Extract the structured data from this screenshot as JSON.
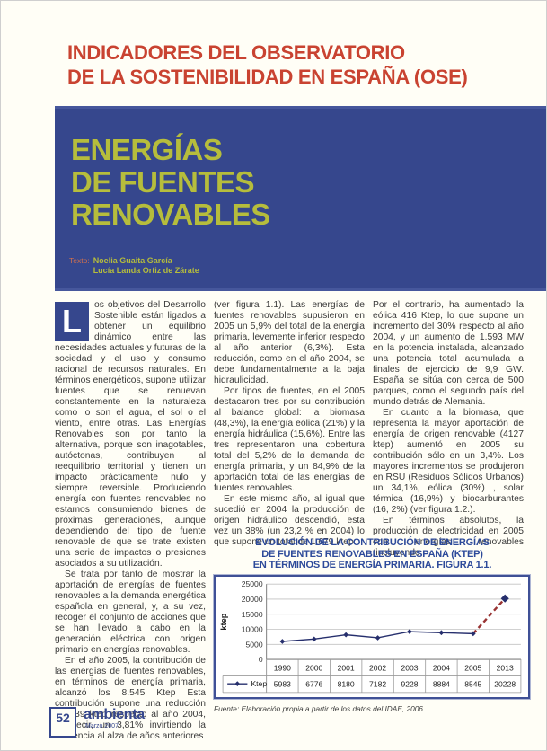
{
  "header": {
    "line1": "INDICADORES DEL OBSERVATORIO",
    "line2": "DE LA SOSTENIBILIDAD EN ESPAÑA (OSE)"
  },
  "hero": {
    "title_lines": [
      "ENERGÍAS",
      "DE FUENTES",
      "RENOVABLES"
    ],
    "credits_label": "Texto:",
    "credits_names": [
      "Noelia Guaita García",
      "Lucía Landa Ortiz de Zárate"
    ]
  },
  "body": {
    "dropcap": "L",
    "col1_p1": "os objetivos del Desarrollo Sostenible están ligados a obtener un equilibrio dinámico entre las necesidades actuales y futuras de la sociedad y el uso y consumo racional de recursos naturales. En términos energéticos, supone utilizar fuentes que se renuevan constantemente en la naturaleza como lo son el agua, el sol o el viento, entre otras. Las Energías Renovables son por tanto la alternativa, porque son inagotables, autóctonas, contribuyen al reequilibrio territorial y tienen un impacto prácticamente nulo y siempre reversible. Produciendo energía con fuentes renovables no estamos consumiendo bienes de próximas generaciones, aunque dependiendo del tipo de fuente renovable de que se trate existen una serie de impactos o presiones asociados a su utilización.",
    "col1_p2": "Se trata por tanto de mostrar la aportación de energías de fuentes renovables a la demanda energética española en general, y, a su vez, recoger el conjunto de acciones que se han llevado a cabo en la generación eléctrica con origen primario en energías renovables.",
    "col1_p3": "En el año 2005, la contribución de las energías de fuentes renovables, en términos de energía primaria, alcanzó los 8.545 Ktep Esta contribución supone una reducción de 339 ktep respecto al año 2004, es decir, un 3,81% invirtiendo la tendencia al alza de años anteriores",
    "col2_p1": "(ver figura 1.1). Las energías de fuentes renovables supusieron en 2005 un 5,9% del total de la energía primaria, levemente inferior respecto al año anterior (6,3%). Esta reducción, como en el año 2004, se debe fundamentalmente a la baja hidraulicidad.",
    "col2_p2": "Por tipos de fuentes, en el 2005 destacaron tres por su contribución al balance global: la biomasa (48,3%), la energía eólica (21%) y la energía hidráulica (15,6%). Entre las tres representaron una cobertura total del 5,2% de la demanda de energía primaria, y un 84,9% de la aportación total de las energías de fuentes renovables.",
    "col2_p3": "En este mismo año, al igual que sucedió en 2004 la producción de origen hidráulico descendió, esta vez un 38% (un 23,2 % en 2004) lo que supone un total de 1.679 ktep.",
    "col3_p1": "Por el contrario, ha aumentado la eólica 416 Ktep, lo que supone un incremento del 30% respecto al año 2004, y un aumento de 1.593 MW en la potencia instalada, alcanzado una potencia total acumulada a finales de ejercicio de 9,9 GW. España se sitúa con cerca de 500 parques, como el segundo país del mundo detrás de Alemania.",
    "col3_p2": "En cuanto a la biomasa, que representa la mayor aportación de energía de origen renovable (4127 ktep) aumentó en 2005 su contribución sólo en un 3,4%. Los mayores incrementos se produjeron en RSU (Residuos Sólidos Urbanos) un 34,1%, eólica (30%) , solar térmica (16,9%) y biocarburantes (16, 2%) (ver figura 1.2.).",
    "col3_p3": "En términos absolutos, la producción de electricidad en 2005 con energías renovables (incluyendo"
  },
  "figure": {
    "title_lines": [
      "EVOLUCIÓN DE LA CONTRIBUCIÓN DE ENERGÍAS",
      "DE FUENTES  RENOVABLES EN ESPAÑA (KTEP)",
      "EN TÉRMINOS DE ENERGÍA PRIMARIA. FIGURA 1.1."
    ],
    "source": "Fuente: Elaboración propia a partir de los datos del IDAE, 2006"
  },
  "chart_data": {
    "type": "line",
    "title": "EVOLUCIÓN DE LA CONTRIBUCIÓN DE ENERGÍAS DE FUENTES RENOVABLES EN ESPAÑA (KTEP) EN TÉRMINOS DE ENERGÍA PRIMARIA. FIGURA 1.1.",
    "categories": [
      "1990",
      "2000",
      "2001",
      "2002",
      "2003",
      "2004",
      "2005",
      "2013"
    ],
    "series": [
      {
        "name": "Ktep",
        "values": [
          5983,
          6776,
          8180,
          7182,
          9228,
          8884,
          8545,
          20228
        ]
      }
    ],
    "xlabel": "",
    "ylabel": "ktep",
    "ylim": [
      0,
      25000
    ],
    "yticks": [
      0,
      5000,
      10000,
      15000,
      20000,
      25000
    ],
    "grid": true,
    "legend_position": "bottom-table",
    "marker": "diamond",
    "line_color": "#262f6d",
    "dashed_segment": {
      "from": "2005",
      "to": "2013",
      "color": "#993333"
    }
  },
  "footer": {
    "page_number": "52",
    "magazine": "ambienta",
    "date": "Marzo 2007"
  },
  "colors": {
    "accent_red": "#c94331",
    "banner_blue": "#36478d",
    "banner_text_green": "#b6bd3c",
    "figure_blue": "#2d4a9a",
    "grid_gray": "#c2c2c2"
  }
}
